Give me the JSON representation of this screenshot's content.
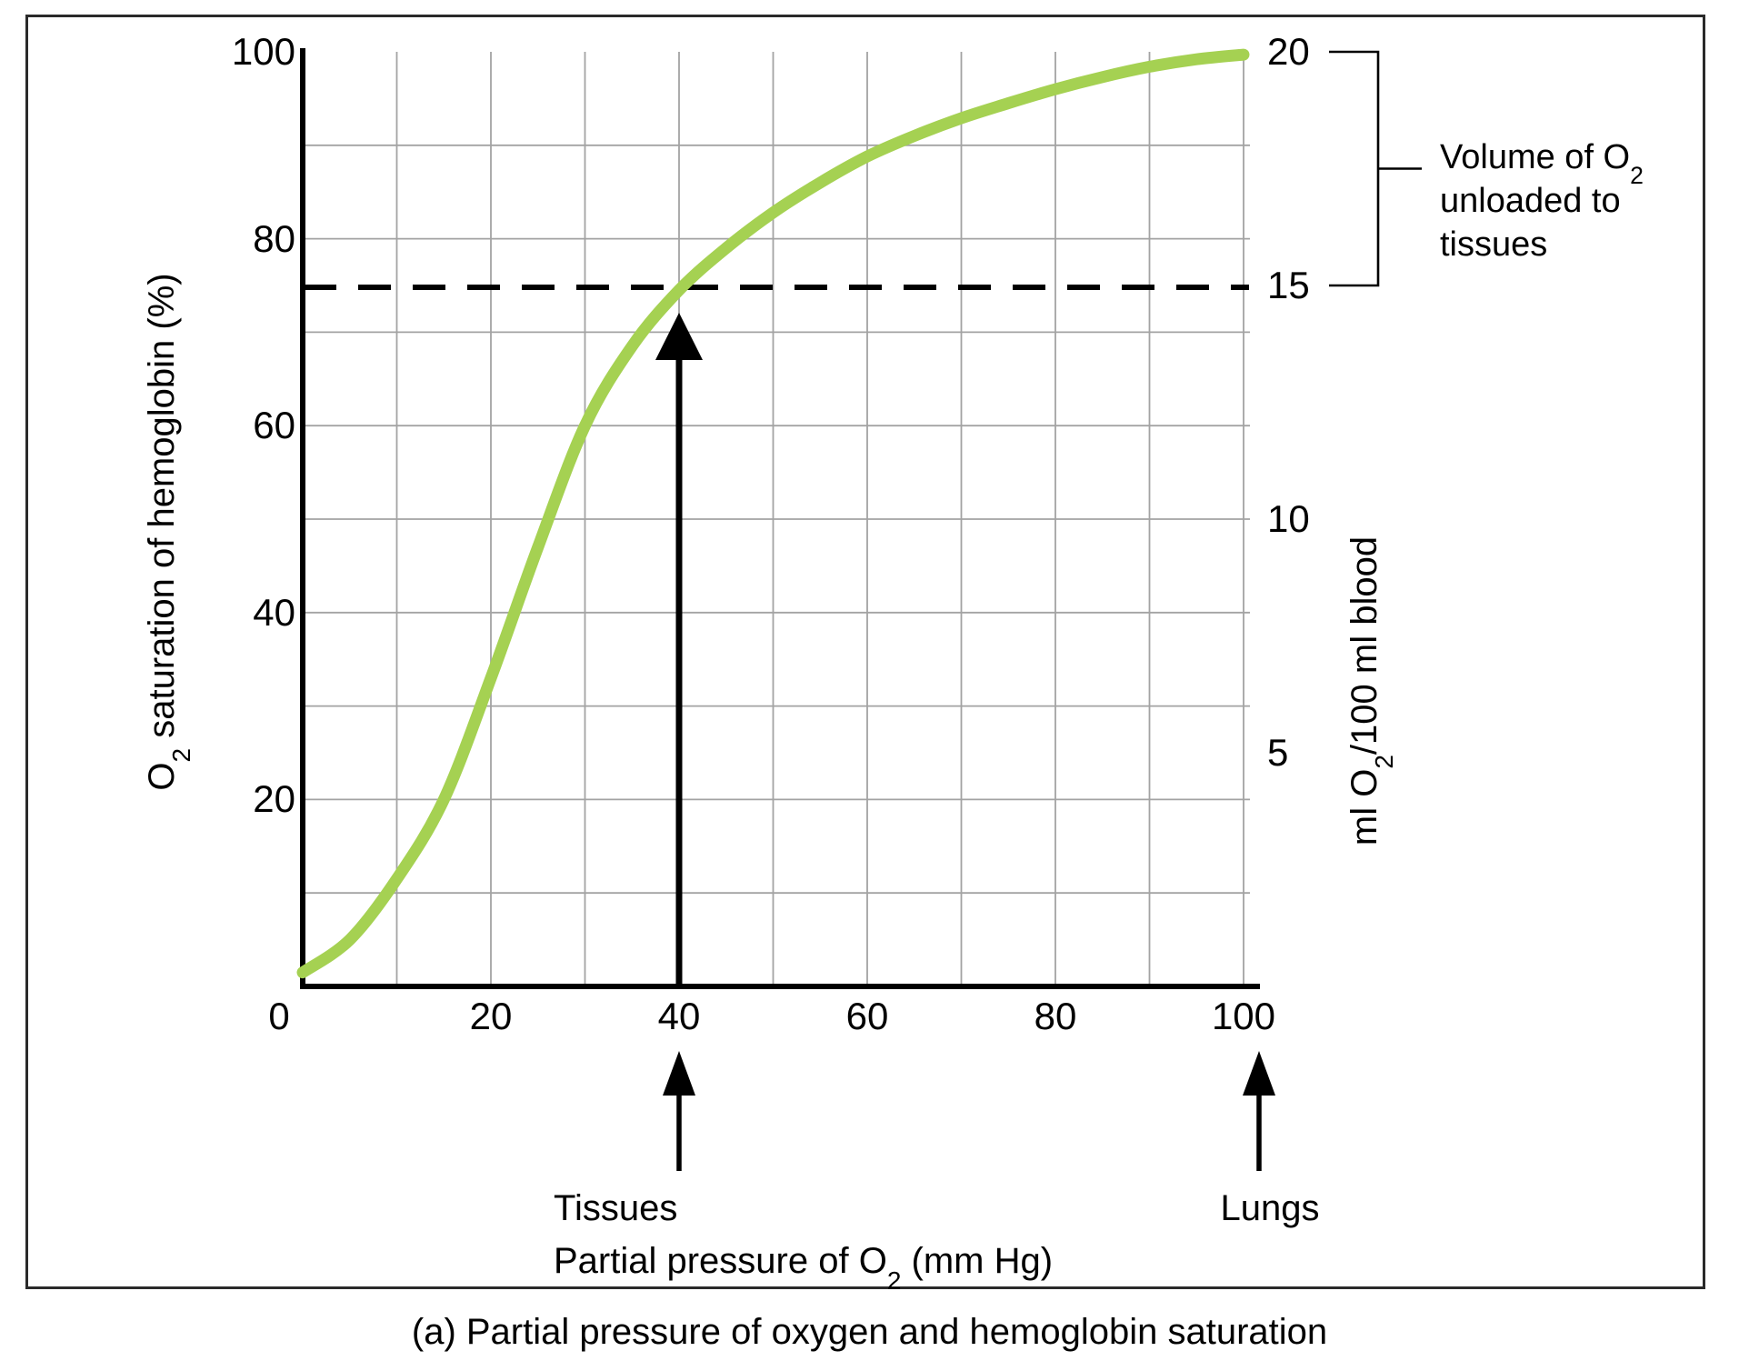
{
  "figure": {
    "caption": "(a) Partial pressure of oxygen and hemoglobin saturation"
  },
  "chart_data": {
    "type": "line",
    "title": "(a) Partial pressure of oxygen and hemoglobin saturation",
    "x_axis": {
      "label_parts": [
        "Partial pressure of O",
        "2",
        " (mm Hg)"
      ],
      "min": 0,
      "max": 100,
      "tick_labels": [
        0,
        20,
        40,
        60,
        80,
        100
      ],
      "gridline_step": 10,
      "grid_on": true
    },
    "y_axis": {
      "label_parts": [
        "O",
        "2",
        " saturation of hemoglobin (%)"
      ],
      "min": 0,
      "max": 100,
      "tick_labels": [
        20,
        40,
        60,
        80,
        100
      ],
      "origin_label": "0",
      "gridline_step": 10,
      "grid_on": true
    },
    "right_axis": {
      "label_parts": [
        "ml O",
        "2",
        "/100 ml blood"
      ],
      "tick_labels": [
        5,
        10,
        15,
        20
      ],
      "saturation_pct_per_unit": 5
    },
    "series": [
      {
        "name": "oxygen-hemoglobin saturation curve",
        "color": "#a5d152",
        "points": [
          [
            0,
            1.5
          ],
          [
            5,
            5
          ],
          [
            10,
            11.5
          ],
          [
            15,
            20
          ],
          [
            20,
            33
          ],
          [
            25,
            47
          ],
          [
            30,
            60
          ],
          [
            35,
            68.5
          ],
          [
            40,
            74.5
          ],
          [
            45,
            79
          ],
          [
            50,
            82.8
          ],
          [
            55,
            86
          ],
          [
            60,
            88.8
          ],
          [
            65,
            91
          ],
          [
            70,
            92.9
          ],
          [
            75,
            94.5
          ],
          [
            80,
            96
          ],
          [
            85,
            97.3
          ],
          [
            90,
            98.4
          ],
          [
            95,
            99.2
          ],
          [
            100,
            99.7
          ]
        ]
      }
    ],
    "annotations": {
      "dashed_line_saturation_pct": 74.8,
      "plot_arrow_po2": 40,
      "tissues": {
        "label": "Tissues",
        "po2": 40
      },
      "lungs": {
        "label": "Lungs",
        "po2": 100
      },
      "bracket": {
        "from_right_value": 15,
        "to_right_value": 20,
        "label_lines": [
          [
            "Volume of O",
            "2"
          ],
          [
            "unloaded to"
          ],
          [
            "tissues"
          ]
        ]
      }
    },
    "colors": {
      "curve": "#a5d152",
      "gridline": "#a3a3a3",
      "axis": "#000000",
      "annotation": "#000000"
    }
  }
}
